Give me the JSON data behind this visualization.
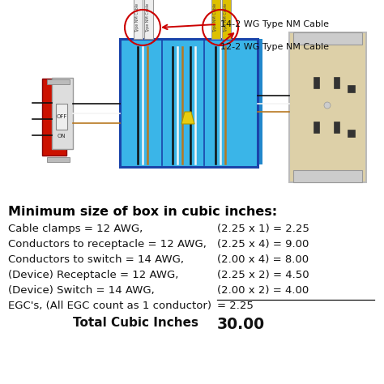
{
  "title": "Minimum size of box in cubic inches:",
  "rows": [
    {
      "label": "Cable clamps = 12 AWG,",
      "calc": "(2.25 x 1) = 2.25"
    },
    {
      "label": "Conductors to receptacle = 12 AWG,",
      "calc": "(2.25 x 4) = 9.00"
    },
    {
      "label": "Conductors to switch = 14 AWG,",
      "calc": "(2.00 x 4) = 8.00"
    },
    {
      "label": "(Device) Receptacle = 12 AWG,",
      "calc": "(2.25 x 2) = 4.50"
    },
    {
      "label": "(Device) Switch = 14 AWG,",
      "calc": "(2.00 x 2) = 4.00"
    },
    {
      "label": "EGC's, (All EGC count as 1 conductor)",
      "calc": "= 2.25"
    }
  ],
  "total_label": "Total Cubic Inches",
  "total_value": "30.00",
  "cable_label_1": "14-2 WG Type NM Cable",
  "cable_label_2": "12-2 WG Type NM Cable",
  "bg_color": "#ffffff",
  "title_color": "#000000",
  "text_color": "#111111",
  "title_fontsize": 11.5,
  "row_fontsize": 9.5,
  "total_fontsize": 11.0,
  "total_value_fontsize": 13.5,
  "diagram_bg": "#3ab5e8",
  "box_border": "#1a44aa",
  "switch_red": "#cc1100",
  "outlet_beige": "#ddd0a8",
  "cable_white": "#eeeeee",
  "cable_yellow": "#ddc000",
  "arrow_red": "#cc0000",
  "wire_black": "#111111",
  "wire_white": "#f5f5f5",
  "wire_copper": "#b87820"
}
